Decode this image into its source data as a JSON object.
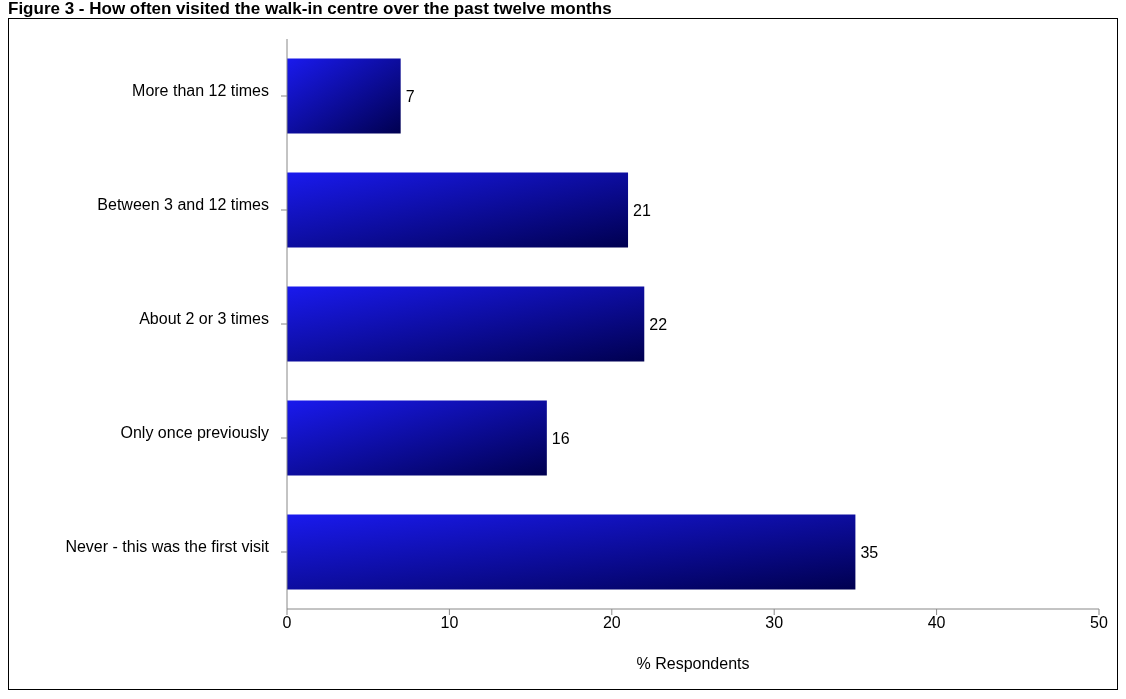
{
  "chart_data": {
    "type": "bar",
    "orientation": "horizontal",
    "title": "Figure 3 - How often visited the walk-in centre over the past twelve months",
    "xlabel": "% Respondents",
    "categories": [
      "More than 12 times",
      "Between 3 and 12 times",
      "About 2 or 3 times",
      "Only once previously",
      "Never - this was the first visit"
    ],
    "values": [
      7,
      21,
      22,
      16,
      35
    ],
    "color": "#1a1aee",
    "xlim": [
      0,
      50
    ],
    "xticks": [
      0,
      10,
      20,
      30,
      40,
      50
    ],
    "grid": false,
    "data_labels": true
  }
}
